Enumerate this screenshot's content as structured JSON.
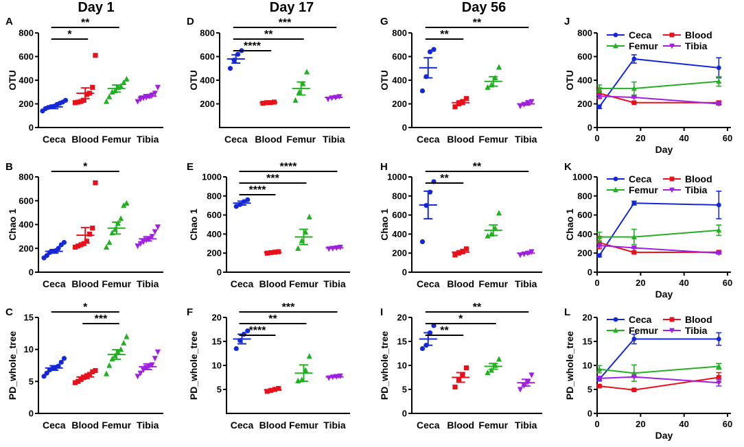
{
  "colors": {
    "Ceca": "#1428d8",
    "Blood": "#e8101a",
    "Femur": "#22b022",
    "Tibia": "#a020e0",
    "axis": "#000000"
  },
  "titles": {
    "day1": "Day 1",
    "day17": "Day 17",
    "day56": "Day 56"
  },
  "chart_data": [
    {
      "id": "A",
      "panel_label": "A",
      "type": "scatter",
      "ylabel": "OTU",
      "ylim": [
        0,
        800
      ],
      "yticks": [
        0,
        200,
        400,
        600,
        800
      ],
      "categories": [
        "Ceca",
        "Blood",
        "Femur",
        "Tibia"
      ],
      "points": [
        [
          140,
          160,
          170,
          175,
          180,
          195,
          205,
          215,
          230
        ],
        [
          210,
          215,
          220,
          230,
          280,
          290,
          340,
          610
        ],
        [
          220,
          260,
          300,
          310,
          340,
          350,
          380,
          410
        ],
        [
          220,
          240,
          250,
          255,
          265,
          275,
          290,
          340
        ]
      ],
      "mean": [
        175,
        290,
        330,
        265
      ],
      "sem": [
        15,
        45,
        30,
        13
      ],
      "sig": [
        {
          "a": 0,
          "b": 2,
          "label": "**"
        },
        {
          "a": 0,
          "b": 1,
          "label": "*"
        }
      ]
    },
    {
      "id": "B",
      "panel_label": "B",
      "type": "scatter",
      "ylabel": "Chao 1",
      "ylim": [
        0,
        800
      ],
      "yticks": [
        0,
        200,
        400,
        600,
        800
      ],
      "categories": [
        "Ceca",
        "Blood",
        "Femur",
        "Tibia"
      ],
      "points": [
        [
          120,
          140,
          165,
          175,
          180,
          200,
          230,
          250
        ],
        [
          210,
          220,
          230,
          240,
          260,
          320,
          370,
          750
        ],
        [
          210,
          250,
          330,
          360,
          410,
          450,
          560,
          580
        ],
        [
          220,
          240,
          255,
          270,
          280,
          300,
          340,
          380
        ]
      ],
      "mean": [
        175,
        310,
        370,
        280
      ],
      "sem": [
        15,
        65,
        50,
        18
      ],
      "sig": [
        {
          "a": 0,
          "b": 2,
          "label": "*"
        }
      ]
    },
    {
      "id": "C",
      "panel_label": "C",
      "type": "scatter",
      "ylabel": "PD_whole_tree",
      "ylim": [
        0,
        15
      ],
      "yticks": [
        0,
        5,
        10,
        15
      ],
      "categories": [
        "Ceca",
        "Blood",
        "Femur",
        "Tibia"
      ],
      "points": [
        [
          5.8,
          6.3,
          6.8,
          7.0,
          7.2,
          7.4,
          8.0,
          8.6
        ],
        [
          4.8,
          5.0,
          5.3,
          5.6,
          5.9,
          6.1,
          6.5,
          6.7
        ],
        [
          6.2,
          7.5,
          8.5,
          9.0,
          9.6,
          10.0,
          11.0,
          12.0
        ],
        [
          5.8,
          6.3,
          6.8,
          7.2,
          7.4,
          7.6,
          8.6,
          9.6
        ]
      ],
      "mean": [
        7.1,
        5.7,
        9.2,
        7.3
      ],
      "sem": [
        0.35,
        0.25,
        0.75,
        0.45
      ],
      "sig": [
        {
          "a": 0,
          "b": 2,
          "label": "*"
        },
        {
          "a": 1,
          "b": 2,
          "label": "***"
        }
      ]
    },
    {
      "id": "D",
      "panel_label": "D",
      "type": "scatter",
      "ylabel": "OTU",
      "ylim": [
        0,
        800
      ],
      "yticks": [
        200,
        400,
        600,
        800
      ],
      "categories": [
        "Ceca",
        "Blood",
        "Femur",
        "Tibia"
      ],
      "points": [
        [
          500,
          570,
          620,
          650
        ],
        [
          205,
          210,
          210,
          215
        ],
        [
          230,
          300,
          370,
          470
        ],
        [
          240,
          250,
          255,
          262
        ]
      ],
      "mean": [
        580,
        210,
        330,
        255
      ],
      "sem": [
        35,
        3,
        55,
        5
      ],
      "sig": [
        {
          "a": 0,
          "b": 3,
          "label": "***"
        },
        {
          "a": 0,
          "b": 2,
          "label": "**"
        },
        {
          "a": 0,
          "b": 1,
          "label": "****"
        }
      ]
    },
    {
      "id": "E",
      "panel_label": "E",
      "type": "scatter",
      "ylabel": "Chao 1",
      "ylim": [
        0,
        1000
      ],
      "yticks": [
        0,
        200,
        400,
        600,
        800,
        1000
      ],
      "categories": [
        "Ceca",
        "Blood",
        "Femur",
        "Tibia"
      ],
      "points": [
        [
          690,
          710,
          740,
          760
        ],
        [
          200,
          205,
          210,
          215
        ],
        [
          250,
          330,
          420,
          580
        ],
        [
          245,
          250,
          255,
          262
        ]
      ],
      "mean": [
        725,
        208,
        370,
        255
      ],
      "sem": [
        20,
        3,
        80,
        5
      ],
      "sig": [
        {
          "a": 0,
          "b": 3,
          "label": "****"
        },
        {
          "a": 0,
          "b": 2,
          "label": "***"
        },
        {
          "a": 0,
          "b": 1,
          "label": "****"
        }
      ]
    },
    {
      "id": "F",
      "panel_label": "F",
      "type": "scatter",
      "ylabel": "PD_whole_tree",
      "ylim": [
        0,
        20
      ],
      "yticks": [
        5,
        10,
        15,
        20
      ],
      "categories": [
        "Ceca",
        "Blood",
        "Femur",
        "Tibia"
      ],
      "points": [
        [
          13.5,
          15.2,
          16.5,
          17.2
        ],
        [
          4.6,
          4.8,
          5.0,
          5.2
        ],
        [
          6.8,
          7.0,
          9.0,
          11.9
        ],
        [
          7.4,
          7.6,
          7.7,
          7.8
        ]
      ],
      "mean": [
        15.5,
        4.9,
        8.4,
        7.6
      ],
      "sem": [
        1.0,
        0.15,
        1.7,
        0.1
      ],
      "sig": [
        {
          "a": 0,
          "b": 3,
          "label": "***"
        },
        {
          "a": 0,
          "b": 2,
          "label": "**"
        },
        {
          "a": 0,
          "b": 1,
          "label": "****"
        }
      ]
    },
    {
      "id": "G",
      "panel_label": "G",
      "type": "scatter",
      "ylabel": "OTU",
      "ylim": [
        0,
        800
      ],
      "yticks": [
        0,
        200,
        400,
        600,
        800
      ],
      "categories": [
        "Ceca",
        "Blood",
        "Femur",
        "Tibia"
      ],
      "points": [
        [
          310,
          430,
          640,
          660
        ],
        [
          175,
          200,
          220,
          245
        ],
        [
          340,
          360,
          420,
          510
        ],
        [
          180,
          195,
          210,
          220
        ]
      ],
      "mean": [
        505,
        210,
        390,
        200
      ],
      "sem": [
        85,
        15,
        40,
        10
      ],
      "sig": [
        {
          "a": 0,
          "b": 3,
          "label": "**"
        },
        {
          "a": 0,
          "b": 1,
          "label": "**"
        }
      ]
    },
    {
      "id": "H",
      "panel_label": "H",
      "type": "scatter",
      "ylabel": "Chao 1",
      "ylim": [
        0,
        1000
      ],
      "yticks": [
        0,
        200,
        400,
        600,
        800,
        1000
      ],
      "categories": [
        "Ceca",
        "Blood",
        "Femur",
        "Tibia"
      ],
      "points": [
        [
          320,
          700,
          840,
          950
        ],
        [
          180,
          200,
          220,
          245
        ],
        [
          380,
          400,
          460,
          620
        ],
        [
          180,
          190,
          200,
          215
        ]
      ],
      "mean": [
        705,
        210,
        440,
        200
      ],
      "sem": [
        145,
        15,
        55,
        10
      ],
      "sig": [
        {
          "a": 0,
          "b": 3,
          "label": "**"
        },
        {
          "a": 0,
          "b": 1,
          "label": "**"
        }
      ]
    },
    {
      "id": "I",
      "panel_label": "I",
      "type": "scatter",
      "ylabel": "PD_whole_tree",
      "ylim": [
        0,
        20
      ],
      "yticks": [
        0,
        5,
        10,
        15,
        20
      ],
      "categories": [
        "Ceca",
        "Blood",
        "Femur",
        "Tibia"
      ],
      "points": [
        [
          13.5,
          14.2,
          16.8,
          18.3
        ],
        [
          5.5,
          7.0,
          8.0,
          9.5
        ],
        [
          8.5,
          9.0,
          10.0,
          11.3
        ],
        [
          5.0,
          5.8,
          6.5,
          8.0
        ]
      ],
      "mean": [
        15.5,
        7.5,
        9.8,
        6.4
      ],
      "sem": [
        1.3,
        1.0,
        0.6,
        0.7
      ],
      "sig": [
        {
          "a": 0,
          "b": 3,
          "label": "**"
        },
        {
          "a": 0,
          "b": 2,
          "label": "*"
        },
        {
          "a": 0,
          "b": 1,
          "label": "**"
        }
      ]
    },
    {
      "id": "J",
      "panel_label": "J",
      "type": "line",
      "ylabel": "OTU",
      "xlabel": "Day",
      "xlim": [
        0,
        60
      ],
      "xticks": [
        0,
        20,
        40,
        60
      ],
      "ylim": [
        0,
        800
      ],
      "yticks": [
        0,
        200,
        400,
        600,
        800
      ],
      "x": [
        1,
        17,
        56
      ],
      "series": [
        {
          "name": "Ceca",
          "values": [
            175,
            580,
            505
          ],
          "err": [
            15,
            35,
            85
          ]
        },
        {
          "name": "Blood",
          "values": [
            290,
            210,
            210
          ],
          "err": [
            45,
            3,
            15
          ]
        },
        {
          "name": "Femur",
          "values": [
            330,
            330,
            390
          ],
          "err": [
            30,
            55,
            40
          ]
        },
        {
          "name": "Tibia",
          "values": [
            265,
            255,
            200
          ],
          "err": [
            13,
            5,
            10
          ]
        }
      ]
    },
    {
      "id": "K",
      "panel_label": "K",
      "type": "line",
      "ylabel": "Chao 1",
      "xlabel": "Day",
      "xlim": [
        0,
        60
      ],
      "xticks": [
        0,
        20,
        40,
        60
      ],
      "ylim": [
        0,
        1000
      ],
      "yticks": [
        0,
        200,
        400,
        600,
        800,
        1000
      ],
      "x": [
        1,
        17,
        56
      ],
      "series": [
        {
          "name": "Ceca",
          "values": [
            175,
            725,
            705
          ],
          "err": [
            15,
            20,
            145
          ]
        },
        {
          "name": "Blood",
          "values": [
            310,
            208,
            210
          ],
          "err": [
            65,
            3,
            15
          ]
        },
        {
          "name": "Femur",
          "values": [
            370,
            370,
            440
          ],
          "err": [
            50,
            80,
            55
          ]
        },
        {
          "name": "Tibia",
          "values": [
            280,
            255,
            200
          ],
          "err": [
            18,
            5,
            10
          ]
        }
      ]
    },
    {
      "id": "L",
      "panel_label": "L",
      "type": "line",
      "ylabel": "PD_whole_tree",
      "xlabel": "Day",
      "xlim": [
        0,
        60
      ],
      "xticks": [
        0,
        20,
        40,
        60
      ],
      "ylim": [
        0,
        20
      ],
      "yticks": [
        0,
        5,
        10,
        15,
        20
      ],
      "x": [
        1,
        17,
        56
      ],
      "series": [
        {
          "name": "Ceca",
          "values": [
            7.1,
            15.5,
            15.5
          ],
          "err": [
            0.35,
            1.0,
            1.3
          ]
        },
        {
          "name": "Blood",
          "values": [
            5.7,
            4.9,
            7.5
          ],
          "err": [
            0.25,
            0.15,
            1.0
          ]
        },
        {
          "name": "Femur",
          "values": [
            9.2,
            8.4,
            9.8
          ],
          "err": [
            0.75,
            1.7,
            0.6
          ]
        },
        {
          "name": "Tibia",
          "values": [
            7.3,
            7.6,
            6.4
          ],
          "err": [
            0.45,
            0.1,
            0.7
          ]
        }
      ]
    }
  ]
}
